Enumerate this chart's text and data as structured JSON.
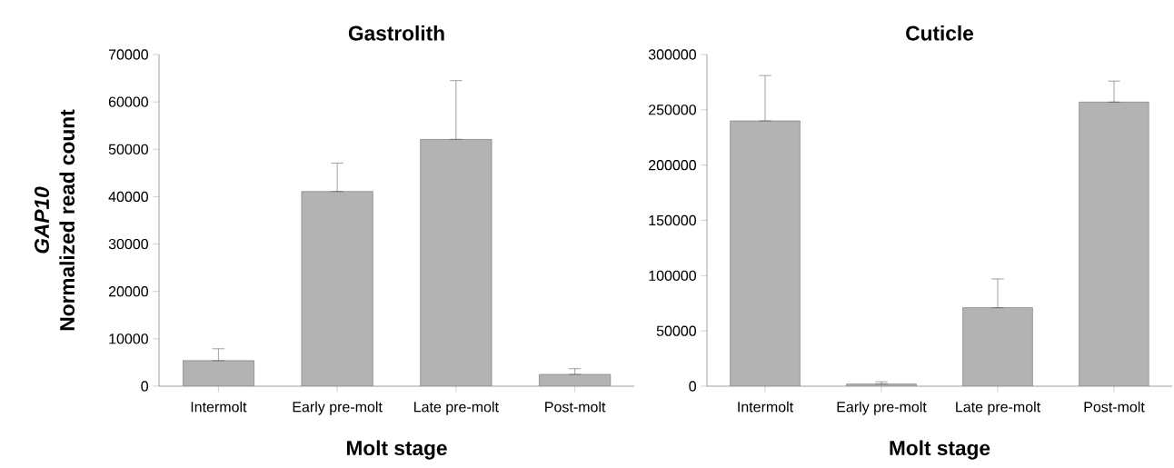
{
  "chart_data": [
    {
      "type": "bar",
      "title": "Gastrolith",
      "xlabel": "Molt stage",
      "ylabel": "*GAP10*\nNormalized read count",
      "categories": [
        "Intermolt",
        "Early pre-molt",
        "Late pre-molt",
        "Post-molt"
      ],
      "values": [
        5400,
        41100,
        52100,
        2500
      ],
      "errors": [
        [
          5400,
          7900
        ],
        [
          41100,
          47100
        ],
        [
          52100,
          64500
        ],
        [
          2500,
          3700
        ]
      ],
      "color": "#b3b3b3",
      "ylim": [
        0,
        70000
      ],
      "yticks": [
        0,
        10000,
        20000,
        30000,
        40000,
        50000,
        60000,
        70000
      ]
    },
    {
      "type": "bar",
      "title": "Cuticle",
      "xlabel": "Molt stage",
      "categories": [
        "Intermolt",
        "Early pre-molt",
        "Late pre-molt",
        "Post-molt"
      ],
      "values": [
        240000,
        2000,
        71000,
        257000
      ],
      "errors": [
        [
          240000,
          281000
        ],
        [
          2000,
          4000
        ],
        [
          71000,
          97000
        ],
        [
          257000,
          276000
        ]
      ],
      "color": "#b3b3b3",
      "ylim": [
        0,
        300000
      ],
      "yticks": [
        0,
        50000,
        100000,
        150000,
        200000,
        250000,
        300000
      ]
    }
  ]
}
